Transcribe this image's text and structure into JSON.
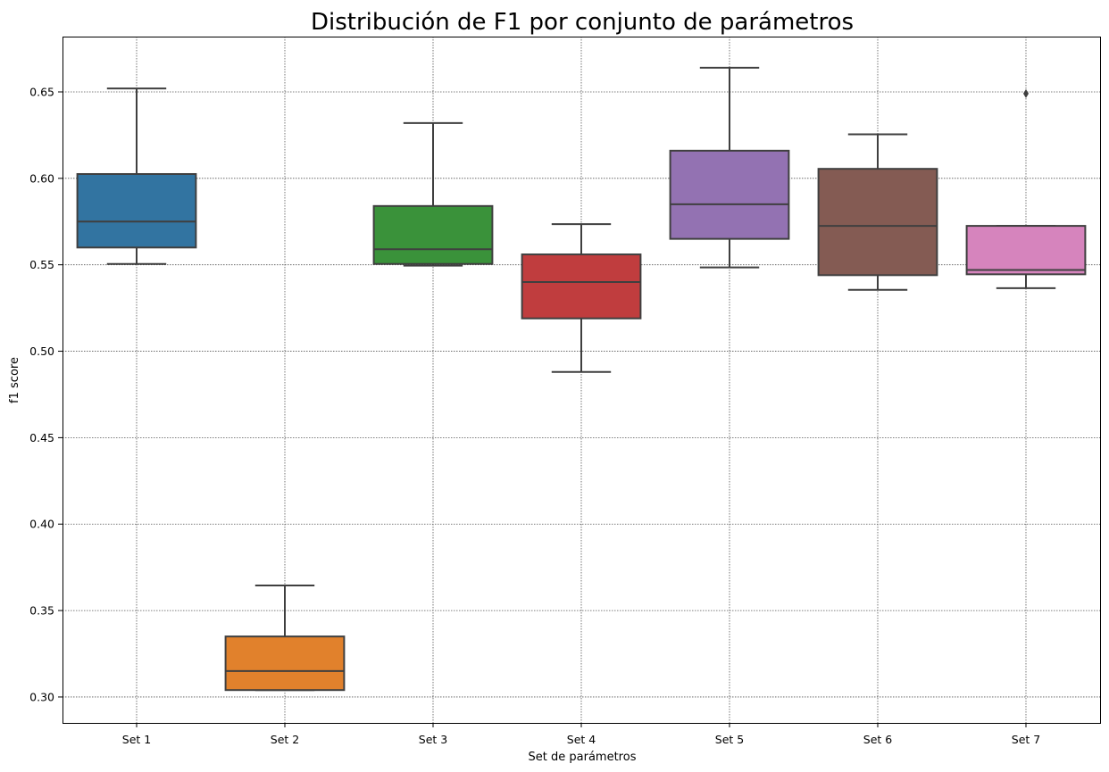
{
  "chart_data": {
    "type": "box",
    "title": "Distribución de F1 por conjunto de parámetros",
    "xlabel": "Set de parámetros",
    "ylabel": "f1 score",
    "ylim": [
      0.285,
      0.682
    ],
    "yticks": [
      0.3,
      0.35,
      0.4,
      0.45,
      0.5,
      0.55,
      0.6,
      0.65
    ],
    "ytick_labels": [
      "0.30",
      "0.35",
      "0.40",
      "0.45",
      "0.50",
      "0.55",
      "0.60",
      "0.65"
    ],
    "grid": true,
    "categories": [
      "Set 1",
      "Set 2",
      "Set 3",
      "Set 4",
      "Set 5",
      "Set 6",
      "Set 7"
    ],
    "boxes": [
      {
        "category": "Set 1",
        "whisker_low": 0.5505,
        "q1": 0.56,
        "median": 0.575,
        "q3": 0.6025,
        "whisker_high": 0.652,
        "outliers": [],
        "color": "#3274a1"
      },
      {
        "category": "Set 2",
        "whisker_low": 0.304,
        "q1": 0.304,
        "median": 0.315,
        "q3": 0.335,
        "whisker_high": 0.3645,
        "outliers": [],
        "color": "#e1812c"
      },
      {
        "category": "Set 3",
        "whisker_low": 0.5495,
        "q1": 0.5505,
        "median": 0.559,
        "q3": 0.584,
        "whisker_high": 0.632,
        "outliers": [],
        "color": "#3a923a"
      },
      {
        "category": "Set 4",
        "whisker_low": 0.488,
        "q1": 0.519,
        "median": 0.54,
        "q3": 0.556,
        "whisker_high": 0.5735,
        "outliers": [],
        "color": "#c03d3e"
      },
      {
        "category": "Set 5",
        "whisker_low": 0.5485,
        "q1": 0.565,
        "median": 0.585,
        "q3": 0.616,
        "whisker_high": 0.664,
        "outliers": [],
        "color": "#9372b2"
      },
      {
        "category": "Set 6",
        "whisker_low": 0.5355,
        "q1": 0.544,
        "median": 0.5725,
        "q3": 0.6055,
        "whisker_high": 0.6255,
        "outliers": [],
        "color": "#845b53"
      },
      {
        "category": "Set 7",
        "whisker_low": 0.5365,
        "q1": 0.5445,
        "median": 0.547,
        "q3": 0.5725,
        "whisker_high": 0.5725,
        "outliers": [
          0.649
        ],
        "color": "#d684bd"
      }
    ]
  }
}
